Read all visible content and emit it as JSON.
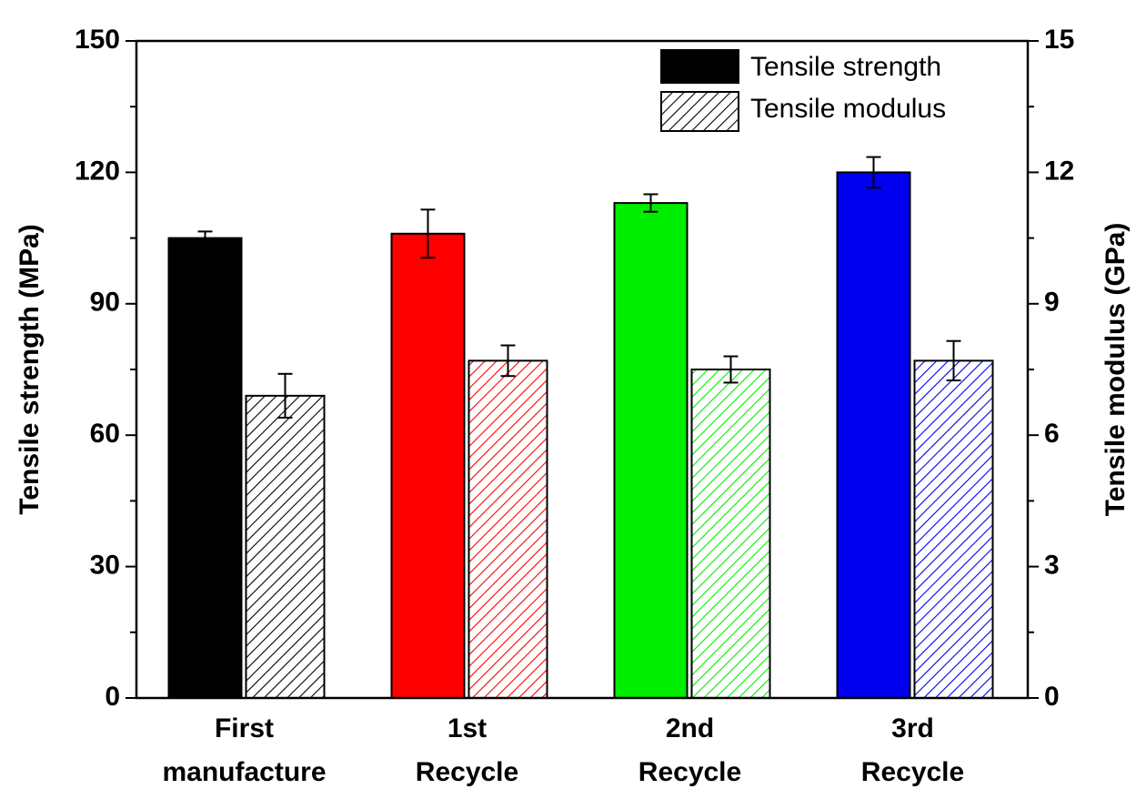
{
  "chart_data": {
    "type": "bar",
    "categories": [
      [
        "First",
        "manufacture"
      ],
      [
        "1st",
        "Recycle"
      ],
      [
        "2nd",
        "Recycle"
      ],
      [
        "3rd",
        "Recycle"
      ]
    ],
    "category_colors": [
      "#000000",
      "#ff0000",
      "#00ee00",
      "#0000ee"
    ],
    "series": [
      {
        "name": "Tensile strength",
        "color": "#000000",
        "values": [
          105,
          106,
          113,
          120
        ],
        "errors": [
          1.5,
          5.5,
          2,
          3.5
        ]
      },
      {
        "name": "Tensile modulus",
        "color": "#000000",
        "axis": "y2",
        "hatch": true,
        "values": [
          6.9,
          7.7,
          7.5,
          7.7
        ],
        "errors": [
          0.5,
          0.35,
          0.3,
          0.45
        ]
      }
    ],
    "ylabel": "Tensile strength (MPa)",
    "y2label": "Tensile modulus (GPa)",
    "ylim": [
      0,
      150
    ],
    "yticks": [
      0,
      30,
      60,
      90,
      120,
      150
    ],
    "y2lim": [
      0,
      15
    ],
    "y2ticks": [
      0,
      3,
      6,
      9,
      12,
      15
    ],
    "legend": "upper right"
  }
}
